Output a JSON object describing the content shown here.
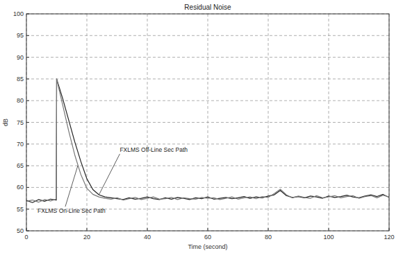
{
  "chart_data": {
    "type": "line",
    "title": "Residual Noise",
    "x_label": "Time (second)",
    "y_label": "dB",
    "xlim": [
      0,
      120
    ],
    "ylim": [
      50,
      100
    ],
    "xticks": [
      0,
      20,
      40,
      60,
      80,
      100,
      120
    ],
    "yticks": [
      50,
      55,
      60,
      65,
      70,
      75,
      80,
      85,
      90,
      95,
      100
    ],
    "grid": true,
    "x": [
      0,
      2,
      4,
      6,
      8,
      9.9,
      10,
      12,
      14,
      16,
      18,
      20,
      22,
      24,
      26,
      28,
      30,
      32,
      34,
      36,
      38,
      40,
      42,
      44,
      46,
      48,
      50,
      52,
      54,
      56,
      58,
      60,
      62,
      64,
      66,
      68,
      70,
      72,
      74,
      76,
      78,
      80,
      82,
      84,
      86,
      88,
      90,
      92,
      94,
      96,
      98,
      100,
      102,
      104,
      106,
      108,
      110,
      112,
      114,
      116,
      118,
      120
    ],
    "series": [
      {
        "color": "#222222",
        "line_style": "solid",
        "values": [
          57,
          56.5,
          57.2,
          56.8,
          57.3,
          57.1,
          85,
          80.5,
          75.5,
          70.5,
          66,
          62,
          59.5,
          58.3,
          57.8,
          57.6,
          57.4,
          57.2,
          57.6,
          57.3,
          57.5,
          57.8,
          57.4,
          57.2,
          57.6,
          57.3,
          57.7,
          57.5,
          57.2,
          57.6,
          57.4,
          57.8,
          57.3,
          57.5,
          57.7,
          57.4,
          57.6,
          57.9,
          57.5,
          57.8,
          57.6,
          58,
          58.3,
          59.3,
          58.1,
          57.7,
          57.9,
          57.6,
          58,
          57.8,
          57.5,
          58,
          57.7,
          57.9,
          58.2,
          57.8,
          57.6,
          58,
          58.3,
          57.9,
          58.4,
          57.7
        ]
      },
      {
        "color": "#777777",
        "line_style": "solid",
        "values": [
          56.8,
          57.1,
          56.6,
          57.2,
          56.9,
          57.3,
          85,
          79,
          73,
          67.5,
          63,
          59.8,
          58.4,
          57.8,
          57.5,
          57.3,
          57.6,
          57.1,
          57.4,
          57.7,
          57.2,
          57.5,
          57.8,
          57.3,
          57.4,
          57.7,
          57.2,
          57.6,
          57.4,
          57.3,
          57.7,
          57.5,
          57.6,
          57.2,
          57.5,
          57.8,
          57.3,
          57.6,
          57.8,
          57.4,
          57.9,
          57.7,
          58.6,
          59.6,
          58.3,
          57.6,
          58,
          57.7,
          57.5,
          58.1,
          57.6,
          57.8,
          58.1,
          57.6,
          57.9,
          58.1,
          57.5,
          57.9,
          58.1,
          57.6,
          58.2,
          57.8
        ]
      }
    ],
    "annotations": [
      {
        "text": "FXLMS Off-Line Sec Path",
        "x": 24,
        "y": 58.3
      },
      {
        "text": "FXLMS On-Line Sec Path",
        "x": 17,
        "y": 65
      }
    ]
  }
}
